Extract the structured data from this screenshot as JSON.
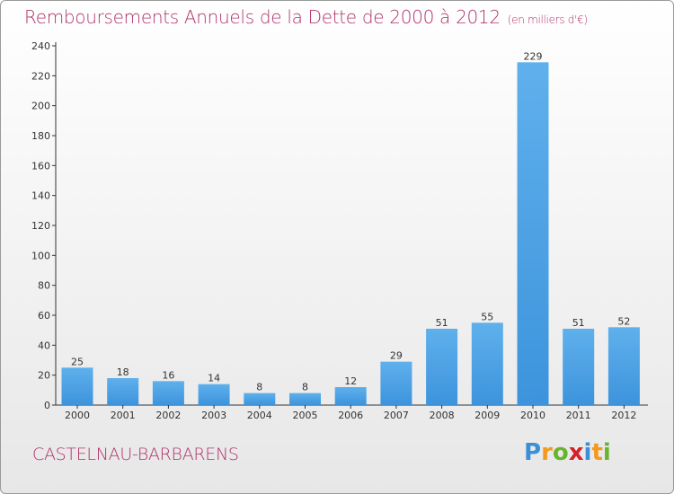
{
  "title": "Remboursements Annuels de la Dette de 2000 à 2012",
  "subtitle": "(en milliers d'€)",
  "commune": "CASTELNAU-BARBARENS",
  "logo": {
    "letters": [
      "P",
      "r",
      "o",
      "x",
      "i",
      "t",
      "i"
    ]
  },
  "colors": {
    "bar": "#3d94dc",
    "bar_light": "#5fb0ec",
    "title": "#b0336b"
  },
  "chart_data": {
    "type": "bar",
    "categories": [
      "2000",
      "2001",
      "2002",
      "2003",
      "2004",
      "2005",
      "2006",
      "2007",
      "2008",
      "2009",
      "2010",
      "2011",
      "2012"
    ],
    "values": [
      25,
      18,
      16,
      14,
      8,
      8,
      12,
      29,
      51,
      55,
      229,
      51,
      52
    ],
    "yticks": [
      0,
      20,
      40,
      60,
      80,
      100,
      120,
      140,
      160,
      180,
      200,
      220,
      240
    ],
    "ylim": [
      0,
      240
    ],
    "grid": false,
    "legend": "none"
  }
}
